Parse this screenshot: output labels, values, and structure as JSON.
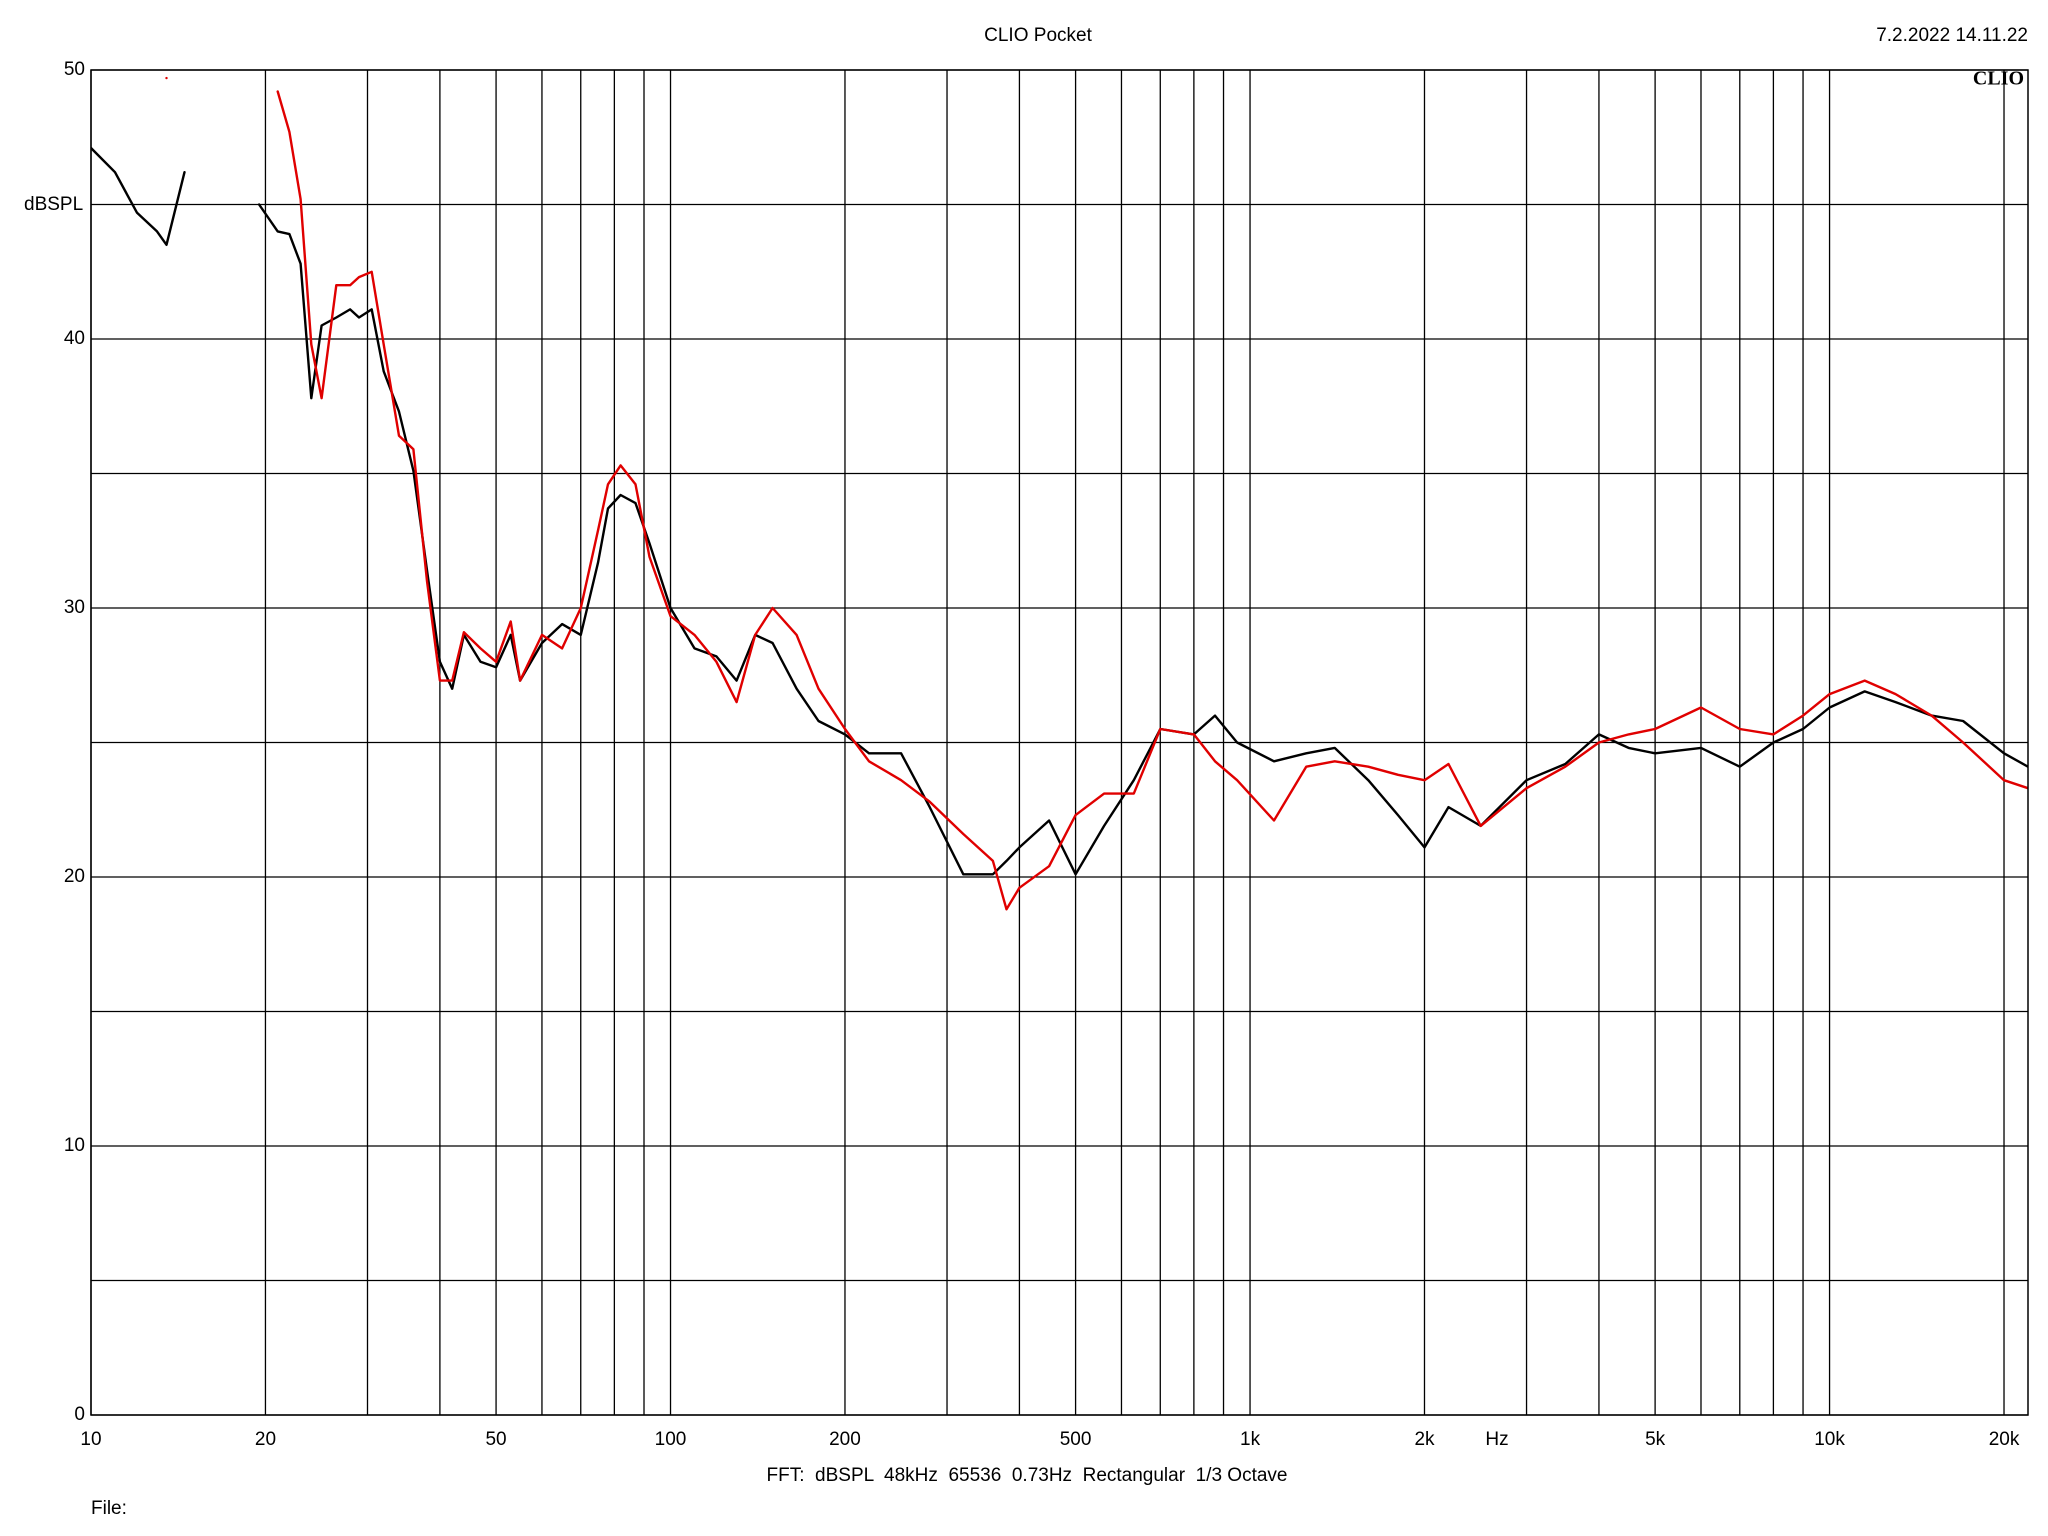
{
  "chart_data": {
    "type": "line",
    "title": "CLIO Pocket",
    "timestamp": "7.2.2022 14.11.22",
    "logo": "CLIO",
    "y_label": "dBSPL",
    "x_label": "Hz",
    "footer": "FFT:  dBSPL  48kHz  65536  0.73Hz  Rectangular  1/3 Octave",
    "file_label": "File:",
    "x_log": true,
    "grid": true,
    "xlim": [
      10,
      22000
    ],
    "ylim": [
      0,
      50
    ],
    "yticks": [
      0,
      10,
      20,
      30,
      40,
      50
    ],
    "yminor": [
      5,
      15,
      25,
      35,
      45
    ],
    "xticks": [
      10,
      20,
      50,
      100,
      200,
      500,
      {
        "value": 1000,
        "label": "1k"
      },
      {
        "value": 2000,
        "label": "2k"
      },
      {
        "value": 5000,
        "label": "5k"
      },
      {
        "value": 10000,
        "label": "10k"
      },
      {
        "value": 20000,
        "label": "20k"
      }
    ],
    "xminor": [
      30,
      40,
      60,
      70,
      80,
      90,
      300,
      400,
      600,
      700,
      800,
      900,
      3000,
      4000,
      6000,
      7000,
      8000,
      9000
    ],
    "x": [
      10,
      11,
      12,
      13,
      13.5,
      14.5,
      15,
      19,
      19.5,
      21,
      22,
      23,
      24,
      25,
      26.5,
      28,
      29,
      30.5,
      32,
      34,
      36,
      38,
      40,
      42,
      44,
      47,
      50,
      53,
      55,
      60,
      65,
      70,
      75,
      78,
      82,
      87,
      92,
      100,
      110,
      120,
      130,
      140,
      150,
      165,
      180,
      200,
      220,
      250,
      280,
      320,
      360,
      380,
      400,
      450,
      500,
      560,
      630,
      700,
      800,
      870,
      950,
      1100,
      1250,
      1400,
      1600,
      1800,
      2000,
      2200,
      2500,
      3000,
      3500,
      4000,
      4500,
      5000,
      6000,
      7000,
      8000,
      9000,
      10000,
      11500,
      13000,
      15000,
      17000,
      20000,
      22000
    ],
    "series": [
      {
        "color": "#000000",
        "values": [
          47.1,
          46.2,
          44.7,
          44.0,
          43.5,
          46.2,
          null,
          null,
          45.0,
          44.0,
          43.9,
          42.8,
          37.8,
          40.5,
          40.8,
          41.1,
          40.8,
          41.1,
          38.8,
          37.3,
          35.1,
          31.4,
          28.0,
          27.0,
          29.0,
          28.0,
          27.8,
          29.0,
          27.3,
          28.7,
          29.4,
          29.0,
          31.7,
          33.7,
          34.2,
          33.9,
          32.4,
          30.0,
          28.5,
          28.2,
          27.3,
          29.0,
          28.7,
          27.0,
          25.8,
          25.3,
          24.6,
          24.6,
          22.6,
          20.1,
          20.1,
          20.6,
          21.1,
          22.1,
          20.1,
          21.9,
          23.6,
          25.5,
          25.3,
          26.0,
          25.0,
          24.3,
          24.6,
          24.8,
          23.6,
          22.3,
          21.1,
          22.6,
          21.9,
          23.6,
          24.2,
          25.3,
          24.8,
          24.6,
          24.8,
          24.1,
          25.0,
          25.5,
          26.3,
          26.9,
          26.5,
          26.0,
          25.8,
          24.6,
          24.1
        ]
      },
      {
        "color": "#e00000",
        "values": [
          null,
          null,
          null,
          null,
          49.7,
          null,
          null,
          null,
          null,
          49.2,
          47.7,
          45.2,
          39.8,
          37.8,
          42.0,
          42.0,
          42.3,
          42.5,
          39.8,
          36.4,
          35.9,
          31.0,
          27.3,
          27.3,
          29.1,
          28.5,
          28.0,
          29.5,
          27.3,
          29.0,
          28.5,
          30.0,
          32.9,
          34.6,
          35.3,
          34.6,
          31.9,
          29.7,
          29.0,
          28.0,
          26.5,
          29.0,
          30.0,
          29.0,
          27.0,
          25.5,
          24.3,
          23.6,
          22.8,
          21.6,
          20.6,
          18.8,
          19.6,
          20.4,
          22.3,
          23.1,
          23.1,
          25.5,
          25.3,
          24.3,
          23.6,
          22.1,
          24.1,
          24.3,
          24.1,
          23.8,
          23.6,
          24.2,
          21.9,
          23.3,
          24.1,
          25.0,
          25.3,
          25.5,
          26.3,
          25.5,
          25.3,
          26.0,
          26.8,
          27.3,
          26.8,
          26.0,
          25.0,
          23.6,
          23.3
        ]
      }
    ]
  }
}
